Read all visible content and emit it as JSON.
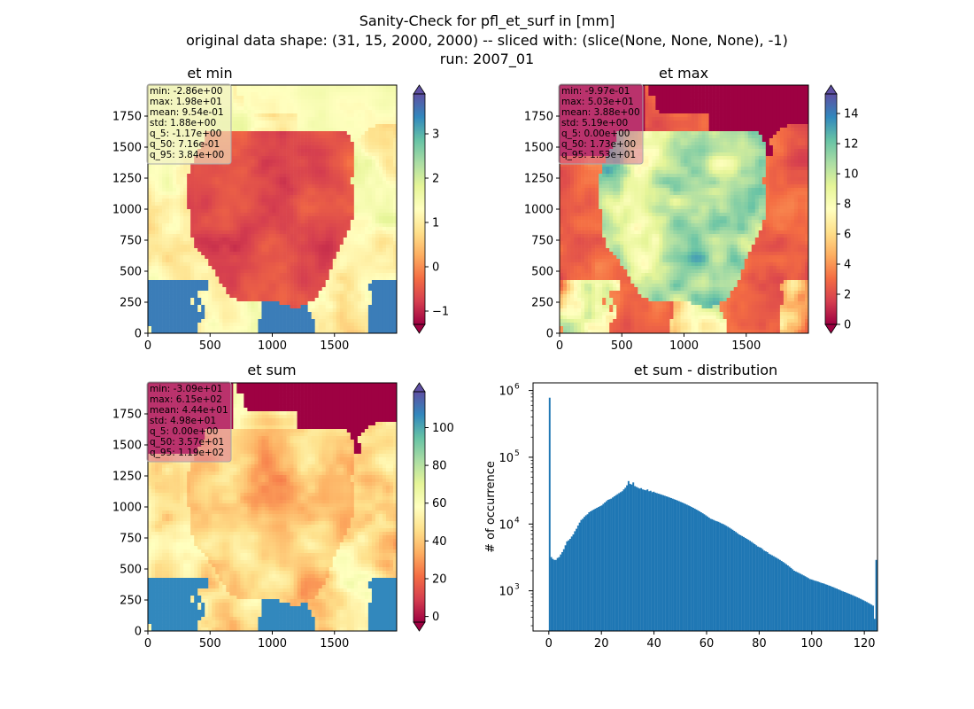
{
  "figure": {
    "title_lines": [
      "Sanity-Check for pfl_et_surf in [mm]",
      "original data shape: (31, 15, 2000, 2000) -- sliced with: (slice(None, None, None), -1)",
      "run: 2007_01"
    ]
  },
  "colors": {
    "histogram": "#1f77b4",
    "stats_box": "rgba(214,100,150,0.5)",
    "stats_box_min": "rgba(240,240,200,0.6)",
    "colormap": [
      "#9e0142",
      "#d53e4f",
      "#f46d43",
      "#fdae61",
      "#fee08b",
      "#ffffbf",
      "#e6f598",
      "#abdda4",
      "#66c2a5",
      "#3288bd",
      "#5e4fa2"
    ]
  },
  "chart_data": [
    {
      "type": "heatmap",
      "title": "et min",
      "colormap": "Spectral",
      "xlim": [
        0,
        2000
      ],
      "ylim": [
        0,
        2000
      ],
      "xticks": [
        "0",
        "500",
        "1000",
        "1500"
      ],
      "yticks": [
        "0",
        "250",
        "500",
        "750",
        "1000",
        "1250",
        "1500",
        "1750"
      ],
      "color_range": [
        -1.3,
        3.9
      ],
      "colorbar_ticks": [
        "3",
        "2",
        "1",
        "0",
        "−1"
      ],
      "colorbar_tick_values": [
        3,
        2,
        1,
        0,
        -1
      ],
      "stats": [
        "min: -2.86e+00",
        "max: 1.98e+01",
        "mean: 9.54e-01",
        "std: 1.88e+00",
        "q_5: -1.17e+00",
        "q_50: 7.16e-01",
        "q_95: 3.84e+00"
      ]
    },
    {
      "type": "heatmap",
      "title": "et max",
      "colormap": "Spectral",
      "xlim": [
        0,
        2000
      ],
      "ylim": [
        0,
        2000
      ],
      "xticks": [
        "0",
        "500",
        "1000",
        "1500"
      ],
      "yticks": [
        "0",
        "250",
        "500",
        "750",
        "1000",
        "1250",
        "1500",
        "1750"
      ],
      "color_range": [
        0,
        15.3
      ],
      "colorbar_ticks": [
        "14",
        "12",
        "10",
        "8",
        "6",
        "4",
        "2",
        "0"
      ],
      "colorbar_tick_values": [
        14,
        12,
        10,
        8,
        6,
        4,
        2,
        0
      ],
      "stats": [
        "min: -9.97e-01",
        "max: 5.03e+01",
        "mean: 3.88e+00",
        "std: 5.19e+00",
        "q_5: 0.00e+00",
        "q_50: 1.73e+00",
        "q_95: 1.53e+01"
      ]
    },
    {
      "type": "heatmap",
      "title": "et sum",
      "colormap": "Spectral",
      "xlim": [
        0,
        2000
      ],
      "ylim": [
        0,
        2000
      ],
      "xticks": [
        "0",
        "500",
        "1000",
        "1500"
      ],
      "yticks": [
        "0",
        "250",
        "500",
        "750",
        "1000",
        "1250",
        "1500",
        "1750"
      ],
      "color_range": [
        -3,
        119
      ],
      "colorbar_ticks": [
        "100",
        "80",
        "60",
        "40",
        "20",
        "0"
      ],
      "colorbar_tick_values": [
        100,
        80,
        60,
        40,
        20,
        0
      ],
      "stats": [
        "min: -3.09e+01",
        "max: 6.15e+02",
        "mean: 4.44e+01",
        "std: 4.98e+01",
        "q_5: 0.00e+00",
        "q_50: 3.57e+01",
        "q_95: 1.19e+02"
      ]
    },
    {
      "type": "bar",
      "title": "et sum - distribution",
      "ylabel": "# of occurrence",
      "xlabel": "",
      "yscale": "log",
      "xlim": [
        -6,
        125
      ],
      "ylim": [
        250,
        1300000
      ],
      "xticks": [
        "0",
        "20",
        "40",
        "60",
        "80",
        "100",
        "120"
      ],
      "xtick_values": [
        0,
        20,
        40,
        60,
        80,
        100,
        120
      ],
      "ytick_values": [
        1000,
        10000,
        100000,
        1000000
      ],
      "ytick_base": "10",
      "ytick_exponents": [
        "3",
        "4",
        "5",
        "6"
      ],
      "bin_start": 0,
      "bin_width": 0.6,
      "counts": [
        780000,
        3200,
        3000,
        2900,
        2900,
        3100,
        3200,
        3500,
        3800,
        4200,
        4800,
        5500,
        5700,
        6000,
        6500,
        7000,
        7800,
        8500,
        9500,
        10500,
        11500,
        12000,
        12800,
        13500,
        14000,
        15000,
        15500,
        16000,
        16500,
        17000,
        17500,
        18000,
        18500,
        19000,
        20000,
        21000,
        22000,
        23000,
        23500,
        24000,
        25000,
        26000,
        27000,
        28000,
        29000,
        30000,
        31000,
        33000,
        35000,
        38000,
        44000,
        40000,
        39000,
        42000,
        37000,
        36000,
        35000,
        34000,
        34500,
        33000,
        32500,
        32000,
        33000,
        31000,
        31500,
        30000,
        30500,
        29500,
        29000,
        28500,
        28000,
        27500,
        27000,
        26500,
        26000,
        25500,
        25000,
        24500,
        24000,
        23500,
        23000,
        22500,
        22000,
        21500,
        21000,
        20500,
        20000,
        19500,
        19000,
        18500,
        18000,
        17500,
        17000,
        16500,
        16000,
        15500,
        15000,
        14500,
        14000,
        13500,
        13000,
        12500,
        12000,
        11800,
        11500,
        11200,
        11000,
        10800,
        10500,
        10200,
        10000,
        9700,
        9400,
        9100,
        8800,
        8500,
        8200,
        7900,
        7600,
        7300,
        7000,
        6800,
        6600,
        6400,
        6200,
        6000,
        5800,
        5600,
        5400,
        5200,
        5000,
        4800,
        4600,
        4500,
        4400,
        4200,
        4000,
        3900,
        3800,
        3600,
        3500,
        3400,
        3300,
        3200,
        3100,
        3000,
        2900,
        2800,
        2700,
        2600,
        2500,
        2400,
        2300,
        2200,
        2100,
        2000,
        1950,
        1900,
        1850,
        1800,
        1750,
        1700,
        1650,
        1600,
        1550,
        1500,
        1480,
        1450,
        1420,
        1400,
        1380,
        1350,
        1320,
        1300,
        1280,
        1250,
        1230,
        1200,
        1180,
        1150,
        1130,
        1100,
        1080,
        1050,
        1030,
        1000,
        980,
        960,
        940,
        920,
        900,
        880,
        860,
        840,
        820,
        800,
        780,
        760,
        740,
        720,
        700,
        680,
        660,
        640,
        620,
        600,
        380,
        2900
      ]
    }
  ]
}
